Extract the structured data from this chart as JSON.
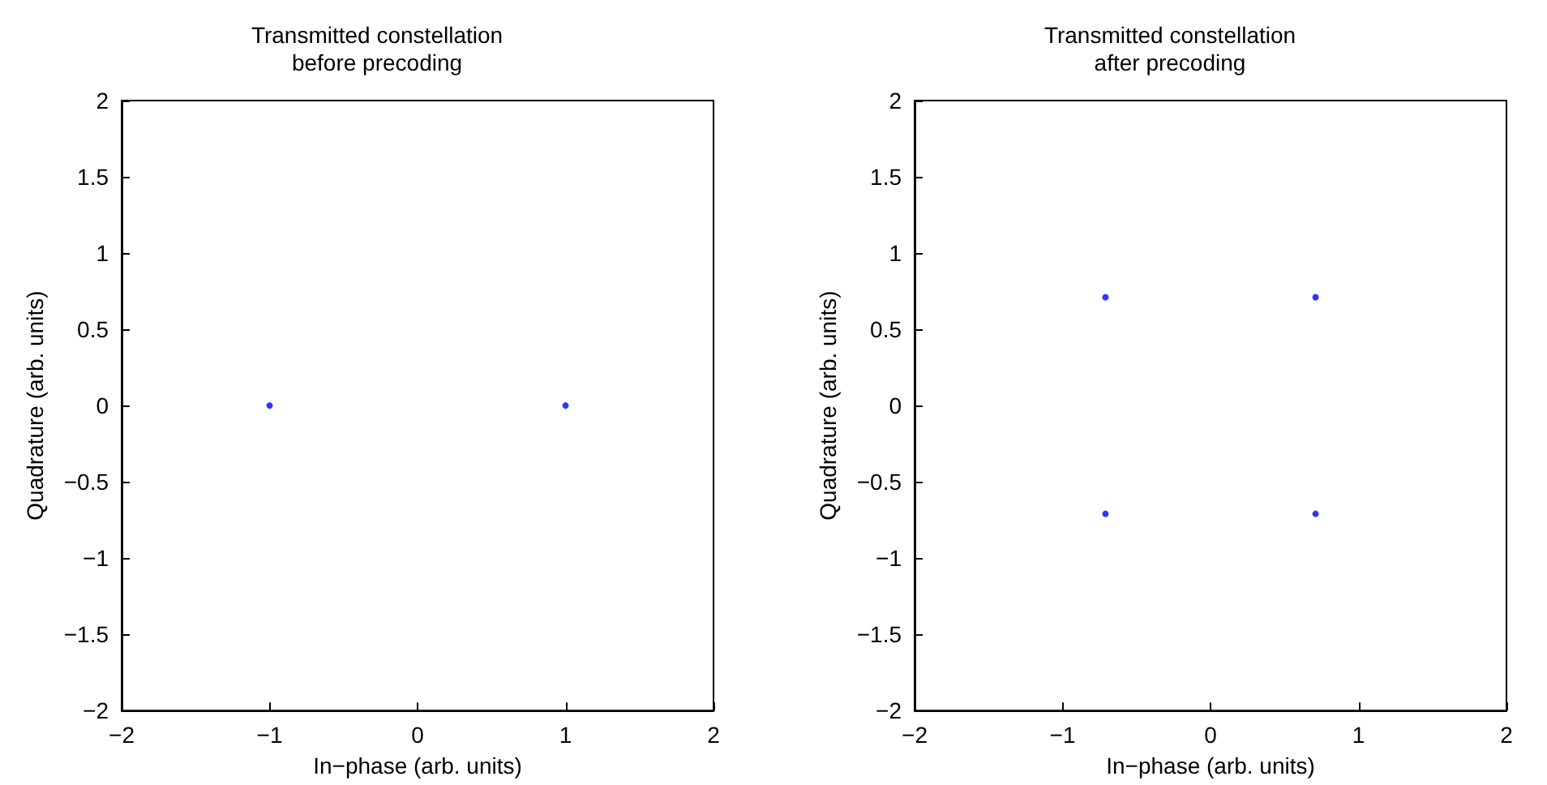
{
  "chart_data": [
    {
      "type": "scatter",
      "title": "Transmitted constellation\nbefore precoding",
      "xlabel": "In−phase (arb. units)",
      "ylabel": "Quadrature (arb. units)",
      "series": [
        {
          "color": "#0000ff",
          "x": [
            -1,
            1
          ],
          "values": [
            0,
            0
          ]
        }
      ],
      "xlim": [
        -2,
        2
      ],
      "ylim": [
        -2,
        2
      ],
      "xticks": [
        -2,
        -1,
        0,
        1,
        2
      ],
      "yticks": [
        -2,
        -1.5,
        -1,
        -0.5,
        0,
        0.5,
        1,
        1.5,
        2
      ],
      "marker": "circle"
    },
    {
      "type": "scatter",
      "title": "Transmitted constellation\nafter precoding",
      "xlabel": "In−phase (arb. units)",
      "ylabel": "Quadrature (arb. units)",
      "series": [
        {
          "color": "#0000ff",
          "x": [
            -0.71,
            0.71,
            -0.71,
            0.71
          ],
          "values": [
            0.71,
            0.71,
            -0.71,
            -0.71
          ]
        }
      ],
      "xlim": [
        -2,
        2
      ],
      "ylim": [
        -2,
        2
      ],
      "xticks": [
        -2,
        -1,
        0,
        1,
        2
      ],
      "yticks": [
        -2,
        -1.5,
        -1,
        -0.5,
        0,
        0.5,
        1,
        1.5,
        2
      ],
      "marker": "circle"
    }
  ]
}
